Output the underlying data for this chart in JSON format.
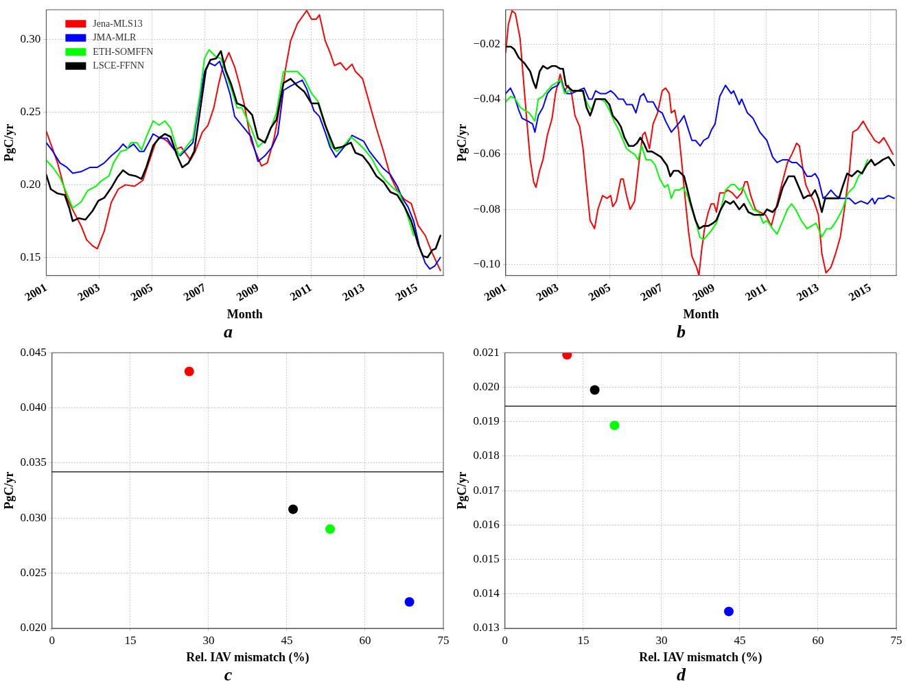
{
  "chart_data": [
    {
      "type": "line",
      "xlabel": "Month",
      "ylabel": "PgC/yr",
      "annotations": [
        "a"
      ],
      "xlim": [
        2001,
        2016
      ],
      "xticks": [
        2001,
        2003,
        2005,
        2007,
        2009,
        2011,
        2013,
        2015
      ],
      "ylim": [
        0.1375,
        0.3205
      ],
      "yticks": [
        {
          "value": 0.15,
          "label": "0.15"
        },
        {
          "value": 0.2,
          "label": "0.20"
        },
        {
          "value": 0.25,
          "label": "0.25"
        },
        {
          "value": 0.3,
          "label": "0.30"
        }
      ],
      "grid": true,
      "legend": "top left",
      "series": [
        {
          "name": "Jena-MLS13",
          "color": "#ff0000",
          "x": [
            2001.0,
            2001.43,
            2001.78,
            2002.05,
            2002.31,
            2002.53,
            2002.75,
            2002.93,
            2003.19,
            2003.46,
            2003.72,
            2003.99,
            2004.34,
            2004.65,
            2004.87,
            2005.13,
            2005.31,
            2005.57,
            2005.84,
            2006.1,
            2006.45,
            2006.63,
            2006.89,
            2007.11,
            2007.33,
            2007.51,
            2007.68,
            2007.9,
            2008.12,
            2008.3,
            2008.47,
            2008.74,
            2009.13,
            2009.35,
            2009.61,
            2009.88,
            2010.05,
            2010.23,
            2010.49,
            2010.84,
            2011.02,
            2011.2,
            2011.32,
            2011.54,
            2011.72,
            2011.89,
            2012.11,
            2012.33,
            2012.55,
            2012.68,
            2012.95,
            2013.21,
            2013.47,
            2013.74,
            2014.0,
            2014.26,
            2014.53,
            2014.79,
            2015.05,
            2015.32,
            2015.58,
            2015.89
          ],
          "values": [
            0.237,
            0.215,
            0.191,
            0.181,
            0.172,
            0.162,
            0.158,
            0.156,
            0.168,
            0.188,
            0.197,
            0.2,
            0.199,
            0.203,
            0.215,
            0.229,
            0.233,
            0.23,
            0.224,
            0.226,
            0.217,
            0.223,
            0.236,
            0.241,
            0.253,
            0.269,
            0.282,
            0.291,
            0.281,
            0.269,
            0.256,
            0.23,
            0.213,
            0.215,
            0.232,
            0.26,
            0.281,
            0.299,
            0.311,
            0.32,
            0.314,
            0.314,
            0.317,
            0.299,
            0.291,
            0.282,
            0.284,
            0.279,
            0.283,
            0.278,
            0.273,
            0.256,
            0.239,
            0.223,
            0.206,
            0.196,
            0.19,
            0.187,
            0.172,
            0.165,
            0.153,
            0.141
          ]
        },
        {
          "name": "JMA-MLR",
          "color": "#0000ff",
          "x": [
            2001.0,
            2001.25,
            2001.52,
            2001.78,
            2002.0,
            2002.31,
            2002.66,
            2002.93,
            2003.19,
            2003.46,
            2003.72,
            2003.9,
            2004.07,
            2004.3,
            2004.52,
            2004.69,
            2004.87,
            2005.04,
            2005.31,
            2005.57,
            2005.84,
            2006.06,
            2006.28,
            2006.54,
            2006.76,
            2006.98,
            2007.15,
            2007.37,
            2007.55,
            2007.77,
            2007.95,
            2008.12,
            2008.3,
            2008.74,
            2009.0,
            2009.26,
            2009.53,
            2009.75,
            2009.96,
            2010.23,
            2010.45,
            2010.67,
            2010.84,
            2011.11,
            2011.32,
            2011.54,
            2011.72,
            2011.94,
            2012.16,
            2012.38,
            2012.55,
            2012.77,
            2012.99,
            2013.21,
            2013.47,
            2013.74,
            2014.0,
            2014.26,
            2014.44,
            2014.66,
            2014.88,
            2015.1,
            2015.32,
            2015.49,
            2015.67,
            2015.89
          ],
          "values": [
            0.229,
            0.223,
            0.215,
            0.212,
            0.208,
            0.209,
            0.212,
            0.212,
            0.215,
            0.22,
            0.224,
            0.228,
            0.225,
            0.228,
            0.223,
            0.223,
            0.229,
            0.235,
            0.232,
            0.232,
            0.224,
            0.22,
            0.224,
            0.229,
            0.254,
            0.278,
            0.284,
            0.282,
            0.285,
            0.273,
            0.262,
            0.247,
            0.243,
            0.233,
            0.216,
            0.22,
            0.226,
            0.235,
            0.265,
            0.268,
            0.27,
            0.272,
            0.266,
            0.251,
            0.247,
            0.236,
            0.226,
            0.219,
            0.224,
            0.229,
            0.234,
            0.232,
            0.23,
            0.223,
            0.217,
            0.211,
            0.207,
            0.199,
            0.191,
            0.185,
            0.175,
            0.157,
            0.146,
            0.142,
            0.144,
            0.15
          ]
        },
        {
          "name": "ETH-SOMFFN",
          "color": "#00ff00",
          "x": [
            2001.0,
            2001.25,
            2001.52,
            2001.78,
            2002.0,
            2002.31,
            2002.57,
            2002.88,
            2003.1,
            2003.37,
            2003.54,
            2003.81,
            2004.03,
            2004.2,
            2004.43,
            2004.6,
            2004.78,
            2005.04,
            2005.26,
            2005.48,
            2005.7,
            2006.01,
            2006.28,
            2006.54,
            2006.81,
            2006.98,
            2007.15,
            2007.42,
            2007.6,
            2007.82,
            2008.04,
            2008.21,
            2008.39,
            2008.74,
            2009.0,
            2009.35,
            2009.7,
            2009.96,
            2010.23,
            2010.49,
            2010.75,
            2011.02,
            2011.28,
            2011.54,
            2011.76,
            2011.98,
            2012.25,
            2012.51,
            2012.77,
            2013.04,
            2013.3,
            2013.56,
            2013.82,
            2014.09,
            2014.35,
            2014.61,
            2014.88
          ],
          "values": [
            0.217,
            0.212,
            0.205,
            0.194,
            0.184,
            0.188,
            0.196,
            0.199,
            0.203,
            0.206,
            0.215,
            0.223,
            0.224,
            0.229,
            0.229,
            0.224,
            0.233,
            0.244,
            0.241,
            0.244,
            0.239,
            0.22,
            0.226,
            0.232,
            0.263,
            0.287,
            0.293,
            0.288,
            0.287,
            0.275,
            0.263,
            0.253,
            0.253,
            0.239,
            0.226,
            0.232,
            0.25,
            0.278,
            0.278,
            0.278,
            0.273,
            0.263,
            0.257,
            0.242,
            0.227,
            0.223,
            0.227,
            0.233,
            0.229,
            0.224,
            0.218,
            0.209,
            0.203,
            0.198,
            0.194,
            0.181,
            0.165
          ]
        },
        {
          "name": "LSCE-FFNN",
          "color": "#000000",
          "x": [
            2001.0,
            2001.17,
            2001.43,
            2001.7,
            2001.87,
            2002.0,
            2002.22,
            2002.48,
            2002.75,
            2002.97,
            2003.19,
            2003.46,
            2003.68,
            2003.9,
            2004.12,
            2004.38,
            2004.6,
            2004.78,
            2005.04,
            2005.26,
            2005.48,
            2005.7,
            2005.92,
            2006.14,
            2006.37,
            2006.59,
            2006.81,
            2007.03,
            2007.2,
            2007.42,
            2007.6,
            2007.77,
            2007.99,
            2008.21,
            2008.48,
            2008.78,
            2009.0,
            2009.26,
            2009.48,
            2009.7,
            2009.96,
            2010.23,
            2010.49,
            2010.75,
            2011.02,
            2011.28,
            2011.54,
            2011.89,
            2012.16,
            2012.51,
            2012.68,
            2012.95,
            2013.21,
            2013.47,
            2013.74,
            2014.0,
            2014.26,
            2014.53,
            2014.79,
            2015.05,
            2015.23,
            2015.4,
            2015.58,
            2015.71,
            2015.89
          ],
          "values": [
            0.207,
            0.197,
            0.194,
            0.193,
            0.184,
            0.175,
            0.177,
            0.176,
            0.182,
            0.189,
            0.191,
            0.198,
            0.205,
            0.21,
            0.207,
            0.206,
            0.204,
            0.212,
            0.227,
            0.232,
            0.235,
            0.233,
            0.221,
            0.212,
            0.215,
            0.223,
            0.251,
            0.279,
            0.286,
            0.287,
            0.292,
            0.279,
            0.269,
            0.256,
            0.254,
            0.248,
            0.232,
            0.229,
            0.239,
            0.245,
            0.27,
            0.273,
            0.268,
            0.264,
            0.256,
            0.256,
            0.241,
            0.225,
            0.226,
            0.229,
            0.222,
            0.22,
            0.214,
            0.206,
            0.202,
            0.195,
            0.193,
            0.185,
            0.175,
            0.159,
            0.151,
            0.15,
            0.155,
            0.156,
            0.165
          ]
        }
      ]
    },
    {
      "type": "line",
      "xlabel": "Month",
      "ylabel": "PgC/yr",
      "annotations": [
        "b"
      ],
      "xlim": [
        2001,
        2016
      ],
      "xticks": [
        2001,
        2003,
        2005,
        2007,
        2009,
        2011,
        2013,
        2015
      ],
      "ylim": [
        -0.104,
        -0.0076
      ],
      "yticks": [
        {
          "value": -0.1,
          "label": "−0.10"
        },
        {
          "value": -0.08,
          "label": "−0.08"
        },
        {
          "value": -0.06,
          "label": "−0.06"
        },
        {
          "value": -0.04,
          "label": "−0.04"
        },
        {
          "value": -0.02,
          "label": "−0.02"
        }
      ],
      "grid": true,
      "series": [
        {
          "color": "#ff0000",
          "x": [
            2001.0,
            2001.1,
            2001.24,
            2001.37,
            2001.55,
            2001.68,
            2001.81,
            2001.94,
            2002.07,
            2002.16,
            2002.3,
            2002.43,
            2002.6,
            2002.78,
            2002.91,
            2003.09,
            2003.26,
            2003.4,
            2003.53,
            2003.66,
            2003.84,
            2003.97,
            2004.1,
            2004.24,
            2004.41,
            2004.54,
            2004.72,
            2004.89,
            2005.03,
            2005.11,
            2005.25,
            2005.42,
            2005.51,
            2005.64,
            2005.78,
            2005.95,
            2006.13,
            2006.26,
            2006.35,
            2006.52,
            2006.66,
            2006.83,
            2007.01,
            2007.14,
            2007.28,
            2007.36,
            2007.49,
            2007.63,
            2007.76,
            2007.89,
            2008.02,
            2008.15,
            2008.33,
            2008.42,
            2008.52,
            2008.65,
            2008.78,
            2008.89,
            2009.0,
            2009.09,
            2009.22,
            2009.4,
            2009.53,
            2009.7,
            2009.88,
            2010.06,
            2010.19,
            2010.28,
            2010.41,
            2010.59,
            2010.76,
            2010.98,
            2011.2,
            2011.42,
            2011.6,
            2011.82,
            2011.99,
            2012.17,
            2012.28,
            2012.39,
            2012.52,
            2012.66,
            2012.83,
            2013.01,
            2013.14,
            2013.3,
            2013.49,
            2013.67,
            2013.85,
            2014.02,
            2014.2,
            2014.33,
            2014.51,
            2014.73,
            2014.9,
            2015.04,
            2015.17,
            2015.34,
            2015.52,
            2015.7,
            2015.87
          ],
          "values": [
            -0.023,
            -0.013,
            -0.008,
            -0.009,
            -0.018,
            -0.033,
            -0.048,
            -0.062,
            -0.07,
            -0.072,
            -0.066,
            -0.062,
            -0.053,
            -0.047,
            -0.038,
            -0.031,
            -0.037,
            -0.035,
            -0.038,
            -0.046,
            -0.05,
            -0.058,
            -0.071,
            -0.084,
            -0.087,
            -0.08,
            -0.075,
            -0.076,
            -0.075,
            -0.079,
            -0.077,
            -0.069,
            -0.069,
            -0.075,
            -0.08,
            -0.077,
            -0.062,
            -0.053,
            -0.052,
            -0.058,
            -0.049,
            -0.045,
            -0.037,
            -0.036,
            -0.038,
            -0.045,
            -0.044,
            -0.051,
            -0.063,
            -0.076,
            -0.088,
            -0.097,
            -0.101,
            -0.104,
            -0.095,
            -0.086,
            -0.081,
            -0.078,
            -0.078,
            -0.081,
            -0.074,
            -0.074,
            -0.073,
            -0.074,
            -0.076,
            -0.074,
            -0.07,
            -0.07,
            -0.075,
            -0.08,
            -0.081,
            -0.082,
            -0.086,
            -0.078,
            -0.071,
            -0.063,
            -0.06,
            -0.056,
            -0.057,
            -0.064,
            -0.071,
            -0.074,
            -0.077,
            -0.082,
            -0.096,
            -0.103,
            -0.101,
            -0.096,
            -0.09,
            -0.079,
            -0.066,
            -0.052,
            -0.051,
            -0.048,
            -0.051,
            -0.053,
            -0.055,
            -0.056,
            -0.054,
            -0.057,
            -0.06
          ]
        },
        {
          "color": "#0000ff",
          "x": [
            2001.0,
            2001.18,
            2001.33,
            2001.5,
            2001.63,
            2001.85,
            2002.03,
            2002.12,
            2002.25,
            2002.43,
            2002.6,
            2002.78,
            2003.0,
            2003.11,
            2003.22,
            2003.35,
            2003.53,
            2003.75,
            2004.01,
            2004.19,
            2004.32,
            2004.45,
            2004.63,
            2004.85,
            2005.03,
            2005.16,
            2005.33,
            2005.51,
            2005.64,
            2005.86,
            2006.0,
            2006.17,
            2006.3,
            2006.44,
            2006.66,
            2006.83,
            2007.01,
            2007.14,
            2007.36,
            2007.54,
            2007.71,
            2007.85,
            2007.98,
            2008.15,
            2008.29,
            2008.47,
            2008.6,
            2008.78,
            2008.91,
            2009.04,
            2009.22,
            2009.44,
            2009.66,
            2009.75,
            2009.97,
            2010.06,
            2010.28,
            2010.5,
            2010.76,
            2011.03,
            2011.25,
            2011.42,
            2011.64,
            2011.82,
            2011.99,
            2012.17,
            2012.39,
            2012.57,
            2012.74,
            2012.88,
            2013.01,
            2013.19,
            2013.32,
            2013.49,
            2013.67,
            2013.85,
            2014.2,
            2014.42,
            2014.64,
            2014.9,
            2015.08,
            2015.17,
            2015.3,
            2015.52,
            2015.7,
            2015.92
          ],
          "values": [
            -0.038,
            -0.036,
            -0.039,
            -0.044,
            -0.047,
            -0.048,
            -0.049,
            -0.052,
            -0.046,
            -0.043,
            -0.038,
            -0.036,
            -0.035,
            -0.033,
            -0.036,
            -0.038,
            -0.038,
            -0.037,
            -0.036,
            -0.04,
            -0.04,
            -0.037,
            -0.038,
            -0.038,
            -0.037,
            -0.038,
            -0.04,
            -0.04,
            -0.042,
            -0.042,
            -0.045,
            -0.039,
            -0.038,
            -0.041,
            -0.041,
            -0.044,
            -0.045,
            -0.048,
            -0.052,
            -0.05,
            -0.048,
            -0.046,
            -0.05,
            -0.055,
            -0.055,
            -0.057,
            -0.055,
            -0.054,
            -0.051,
            -0.049,
            -0.039,
            -0.035,
            -0.038,
            -0.037,
            -0.042,
            -0.04,
            -0.045,
            -0.047,
            -0.052,
            -0.055,
            -0.061,
            -0.063,
            -0.062,
            -0.062,
            -0.063,
            -0.063,
            -0.065,
            -0.068,
            -0.068,
            -0.067,
            -0.069,
            -0.076,
            -0.075,
            -0.073,
            -0.075,
            -0.076,
            -0.076,
            -0.078,
            -0.077,
            -0.078,
            -0.076,
            -0.078,
            -0.076,
            -0.076,
            -0.075,
            -0.076
          ]
        },
        {
          "color": "#00ff00",
          "x": [
            2001.0,
            2001.2,
            2001.37,
            2001.55,
            2001.72,
            2001.9,
            2002.12,
            2002.25,
            2002.43,
            2002.6,
            2002.78,
            2002.96,
            2003.11,
            2003.26,
            2003.4,
            2003.75,
            2003.93,
            2004.15,
            2004.28,
            2004.45,
            2004.63,
            2004.81,
            2004.98,
            2005.16,
            2005.33,
            2005.51,
            2005.64,
            2005.78,
            2005.95,
            2006.08,
            2006.22,
            2006.39,
            2006.57,
            2006.74,
            2006.92,
            2007.1,
            2007.23,
            2007.36,
            2007.49,
            2007.67,
            2007.8,
            2007.98,
            2008.11,
            2008.29,
            2008.45,
            2008.6,
            2008.87,
            2009.09,
            2009.26,
            2009.44,
            2009.66,
            2009.79,
            2009.97,
            2010.1,
            2010.28,
            2010.5,
            2010.72,
            2010.89,
            2011.03,
            2011.25,
            2011.42,
            2011.6,
            2011.82,
            2011.98,
            2012.13,
            2012.35,
            2012.57,
            2012.74,
            2012.92,
            2013.14,
            2013.32,
            2013.49,
            2013.71,
            2013.93,
            2014.15,
            2014.37,
            2014.55,
            2014.73,
            2014.9
          ],
          "values": [
            -0.041,
            -0.039,
            -0.04,
            -0.043,
            -0.044,
            -0.045,
            -0.048,
            -0.04,
            -0.039,
            -0.037,
            -0.035,
            -0.034,
            -0.033,
            -0.038,
            -0.037,
            -0.037,
            -0.037,
            -0.042,
            -0.044,
            -0.04,
            -0.04,
            -0.041,
            -0.044,
            -0.048,
            -0.051,
            -0.055,
            -0.058,
            -0.059,
            -0.06,
            -0.062,
            -0.057,
            -0.062,
            -0.062,
            -0.064,
            -0.069,
            -0.072,
            -0.071,
            -0.076,
            -0.073,
            -0.073,
            -0.072,
            -0.075,
            -0.079,
            -0.084,
            -0.09,
            -0.091,
            -0.088,
            -0.085,
            -0.08,
            -0.073,
            -0.071,
            -0.071,
            -0.073,
            -0.072,
            -0.076,
            -0.08,
            -0.081,
            -0.085,
            -0.084,
            -0.087,
            -0.089,
            -0.085,
            -0.08,
            -0.078,
            -0.08,
            -0.084,
            -0.087,
            -0.086,
            -0.085,
            -0.09,
            -0.087,
            -0.087,
            -0.084,
            -0.08,
            -0.074,
            -0.072,
            -0.068,
            -0.066,
            -0.062
          ]
        },
        {
          "color": "#000000",
          "x": [
            2001.0,
            2001.2,
            2001.33,
            2001.5,
            2001.72,
            2001.94,
            2002.07,
            2002.16,
            2002.3,
            2002.43,
            2002.6,
            2002.78,
            2002.91,
            2003.09,
            2003.2,
            2003.31,
            2003.57,
            2003.79,
            2003.97,
            2004.1,
            2004.24,
            2004.32,
            2004.45,
            2004.63,
            2004.81,
            2004.98,
            2005.11,
            2005.29,
            2005.42,
            2005.56,
            2005.73,
            2005.91,
            2006.04,
            2006.17,
            2006.3,
            2006.44,
            2006.61,
            2006.79,
            2006.96,
            2007.19,
            2007.32,
            2007.45,
            2007.63,
            2007.85,
            2007.98,
            2008.11,
            2008.29,
            2008.43,
            2008.6,
            2008.78,
            2008.96,
            2009.09,
            2009.26,
            2009.44,
            2009.62,
            2009.75,
            2009.97,
            2010.15,
            2010.32,
            2010.54,
            2010.76,
            2010.89,
            2011.03,
            2011.25,
            2011.42,
            2011.64,
            2011.86,
            2012.08,
            2012.26,
            2012.44,
            2012.61,
            2012.74,
            2012.88,
            2013.01,
            2013.14,
            2013.27,
            2013.49,
            2013.8,
            2013.93,
            2014.11,
            2014.29,
            2014.51,
            2014.68,
            2014.86,
            2015.04,
            2015.17,
            2015.34,
            2015.48,
            2015.7,
            2015.78,
            2015.92
          ],
          "values": [
            -0.021,
            -0.021,
            -0.022,
            -0.025,
            -0.027,
            -0.03,
            -0.034,
            -0.036,
            -0.03,
            -0.028,
            -0.029,
            -0.028,
            -0.028,
            -0.029,
            -0.029,
            -0.035,
            -0.037,
            -0.037,
            -0.037,
            -0.043,
            -0.046,
            -0.044,
            -0.04,
            -0.04,
            -0.04,
            -0.042,
            -0.046,
            -0.048,
            -0.05,
            -0.054,
            -0.057,
            -0.057,
            -0.056,
            -0.054,
            -0.056,
            -0.059,
            -0.059,
            -0.06,
            -0.061,
            -0.064,
            -0.068,
            -0.066,
            -0.066,
            -0.068,
            -0.073,
            -0.078,
            -0.084,
            -0.087,
            -0.086,
            -0.086,
            -0.085,
            -0.084,
            -0.08,
            -0.077,
            -0.078,
            -0.077,
            -0.08,
            -0.078,
            -0.081,
            -0.082,
            -0.082,
            -0.082,
            -0.08,
            -0.081,
            -0.079,
            -0.072,
            -0.068,
            -0.068,
            -0.072,
            -0.076,
            -0.075,
            -0.075,
            -0.073,
            -0.076,
            -0.081,
            -0.076,
            -0.076,
            -0.076,
            -0.072,
            -0.067,
            -0.068,
            -0.066,
            -0.067,
            -0.064,
            -0.062,
            -0.064,
            -0.063,
            -0.062,
            -0.061,
            -0.062,
            -0.064
          ]
        }
      ]
    },
    {
      "type": "scatter",
      "xlabel": "Rel. IAV mismatch (%)",
      "ylabel": "PgC/yr",
      "annotations": [
        "c"
      ],
      "xlim": [
        0,
        75
      ],
      "xticks": [
        0,
        15,
        30,
        45,
        60,
        75
      ],
      "ylim": [
        0.02,
        0.045
      ],
      "yticks": [
        {
          "value": 0.02,
          "label": "0.020"
        },
        {
          "value": 0.025,
          "label": "0.025"
        },
        {
          "value": 0.03,
          "label": "0.030"
        },
        {
          "value": 0.035,
          "label": "0.035"
        },
        {
          "value": 0.04,
          "label": "0.040"
        },
        {
          "value": 0.045,
          "label": "0.045"
        }
      ],
      "grid": true,
      "marker": "circle",
      "x": [
        26.3,
        46.2,
        53.3,
        68.5
      ],
      "values": [
        0.0433,
        0.0308,
        0.029,
        0.0224
      ],
      "colors": [
        "#ff0000",
        "#000000",
        "#00ff00",
        "#0000ff"
      ],
      "ref_lines": [
        {
          "axis": "y",
          "value": 0.0342,
          "color": "#000000"
        }
      ]
    },
    {
      "type": "scatter",
      "xlabel": "Rel. IAV mismatch (%)",
      "ylabel": "PgC/yr",
      "annotations": [
        "d"
      ],
      "xlim": [
        0,
        75
      ],
      "xticks": [
        0,
        15,
        30,
        45,
        60,
        75
      ],
      "ylim": [
        0.013,
        0.021
      ],
      "yticks": [
        {
          "value": 0.013,
          "label": "0.013"
        },
        {
          "value": 0.014,
          "label": "0.014"
        },
        {
          "value": 0.015,
          "label": "0.015"
        },
        {
          "value": 0.016,
          "label": "0.016"
        },
        {
          "value": 0.017,
          "label": "0.017"
        },
        {
          "value": 0.018,
          "label": "0.018"
        },
        {
          "value": 0.019,
          "label": "0.019"
        },
        {
          "value": 0.02,
          "label": "0.020"
        },
        {
          "value": 0.021,
          "label": "0.021"
        }
      ],
      "grid": true,
      "marker": "circle",
      "x": [
        11.9,
        17.2,
        21.0,
        42.9
      ],
      "values": [
        0.02094,
        0.01992,
        0.01889,
        0.01349
      ],
      "colors": [
        "#ff0000",
        "#000000",
        "#00ff00",
        "#0000ff"
      ],
      "ref_lines": [
        {
          "axis": "y",
          "value": 0.01945,
          "color": "#000000"
        }
      ]
    }
  ]
}
